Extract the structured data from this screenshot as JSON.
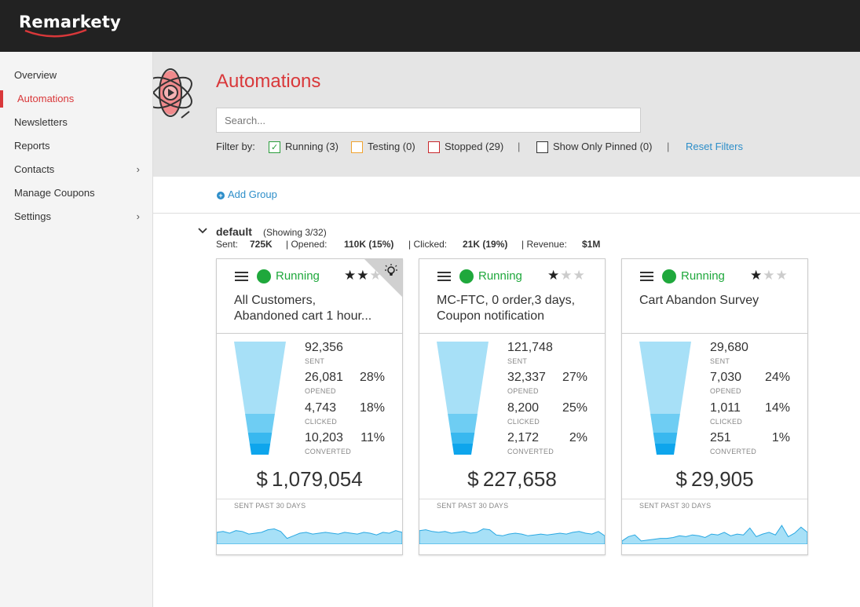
{
  "app": {
    "logo": "Remarkety"
  },
  "sidebar": {
    "items": [
      {
        "label": "Overview",
        "active": false,
        "has_submenu": false
      },
      {
        "label": "Automations",
        "active": true,
        "has_submenu": false
      },
      {
        "label": "Newsletters",
        "active": false,
        "has_submenu": false
      },
      {
        "label": "Reports",
        "active": false,
        "has_submenu": false
      },
      {
        "label": "Contacts",
        "active": false,
        "has_submenu": true
      },
      {
        "label": "Manage Coupons",
        "active": false,
        "has_submenu": false
      },
      {
        "label": "Settings",
        "active": false,
        "has_submenu": true
      }
    ],
    "chevron": "›"
  },
  "header": {
    "title": "Automations",
    "icon": "automation-atom-icon",
    "search_placeholder": "Search...",
    "filter_label": "Filter by:",
    "filters": [
      {
        "label": "Running (3)",
        "checked": true,
        "color": "#2a9d3c"
      },
      {
        "label": "Testing (0)",
        "checked": false,
        "color": "#f0a330"
      },
      {
        "label": "Stopped (29)",
        "checked": false,
        "color": "#c8282c"
      },
      {
        "label": "Show Only Pinned (0)",
        "checked": false,
        "color": "#333333"
      }
    ],
    "separator": "|",
    "reset_label": "Reset Filters"
  },
  "add_group_label": "Add Group",
  "group": {
    "name": "default",
    "showing": "(Showing 3/32)",
    "stats": {
      "sent_label": "Sent:",
      "sent_value": "725K",
      "opened_label": "| Opened:",
      "opened_value": "110K (15%)",
      "clicked_label": "| Clicked:",
      "clicked_value": "21K (19%)",
      "revenue_label": "| Revenue:",
      "revenue_value": "$1M"
    }
  },
  "colors": {
    "accent": "#d9383a",
    "running": "#1fa83c",
    "link": "#2d8ec9",
    "funnel_top": "#a7e0f7",
    "funnel_bottom": "#0ea5ec"
  },
  "cards": [
    {
      "status": "Running",
      "stars": 2,
      "max_stars": 3,
      "pinned": true,
      "title": "All Customers,\nAbandoned cart 1 hour...",
      "sent": "92,356",
      "sent_label": "SENT",
      "opened": "26,081",
      "opened_label": "OPENED",
      "opened_pct": "28%",
      "clicked": "4,743",
      "clicked_label": "CLICKED",
      "clicked_pct": "18%",
      "converted": "10,203",
      "converted_label": "CONVERTED",
      "converted_pct": "11%",
      "revenue": "$ 1,079,054",
      "spark_label": "SENT PAST 30 DAYS",
      "spark": [
        0.55,
        0.6,
        0.5,
        0.65,
        0.6,
        0.45,
        0.5,
        0.55,
        0.7,
        0.75,
        0.6,
        0.2,
        0.35,
        0.5,
        0.55,
        0.45,
        0.5,
        0.55,
        0.5,
        0.45,
        0.55,
        0.5,
        0.45,
        0.55,
        0.5,
        0.4,
        0.55,
        0.5,
        0.65,
        0.55
      ]
    },
    {
      "status": "Running",
      "stars": 1,
      "max_stars": 3,
      "pinned": false,
      "title": "MC-FTC, 0 order,3 days,\nCoupon notification",
      "sent": "121,748",
      "sent_label": "SENT",
      "opened": "32,337",
      "opened_label": "OPENED",
      "opened_pct": "27%",
      "clicked": "8,200",
      "clicked_label": "CLICKED",
      "clicked_pct": "25%",
      "converted": "2,172",
      "converted_label": "CONVERTED",
      "converted_pct": "2%",
      "revenue": "$ 227,658",
      "spark_label": "SENT PAST 30 DAYS",
      "spark": [
        0.65,
        0.7,
        0.6,
        0.55,
        0.6,
        0.5,
        0.55,
        0.6,
        0.5,
        0.55,
        0.75,
        0.7,
        0.4,
        0.35,
        0.45,
        0.5,
        0.45,
        0.35,
        0.4,
        0.45,
        0.4,
        0.45,
        0.5,
        0.45,
        0.55,
        0.6,
        0.5,
        0.45,
        0.6,
        0.35
      ]
    },
    {
      "status": "Running",
      "stars": 1,
      "max_stars": 3,
      "pinned": false,
      "title": "Cart Abandon Survey",
      "sent": "29,680",
      "sent_label": "SENT",
      "opened": "7,030",
      "opened_label": "OPENED",
      "opened_pct": "24%",
      "clicked": "1,011",
      "clicked_label": "CLICKED",
      "clicked_pct": "14%",
      "converted": "251",
      "converted_label": "CONVERTED",
      "converted_pct": "1%",
      "revenue": "$ 29,905",
      "spark_label": "SENT PAST 30 DAYS",
      "spark": [
        0.05,
        0.3,
        0.4,
        0.05,
        0.1,
        0.15,
        0.2,
        0.2,
        0.25,
        0.35,
        0.3,
        0.4,
        0.35,
        0.25,
        0.45,
        0.4,
        0.55,
        0.35,
        0.45,
        0.4,
        0.8,
        0.3,
        0.45,
        0.55,
        0.4,
        0.95,
        0.3,
        0.5,
        0.85,
        0.55
      ]
    }
  ]
}
